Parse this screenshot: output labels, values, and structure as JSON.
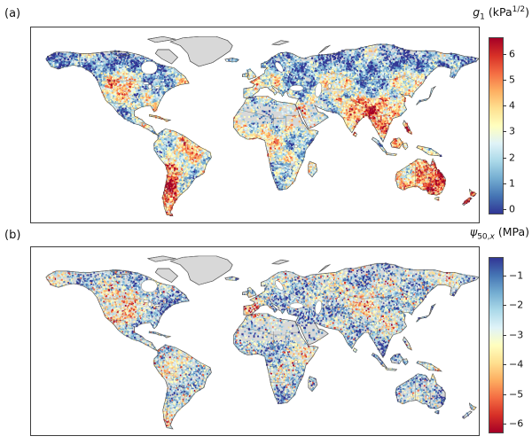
{
  "figure": {
    "background": "#ffffff",
    "panels": [
      {
        "label": "(a)",
        "colorbar": {
          "title": {
            "var": "g",
            "sub": "1",
            "subit": "",
            "mid": " (kPa",
            "sup": "1/2",
            "end": ")"
          },
          "ticks": [
            "6",
            "5",
            "4",
            "3",
            "2",
            "1",
            "0"
          ],
          "gradient_top_to_bottom": [
            "#a50026",
            "#d73027",
            "#f46d43",
            "#fdae61",
            "#fee090",
            "#ffffbf",
            "#e0f3f8",
            "#abd9e9",
            "#74add1",
            "#4575b4",
            "#313695"
          ]
        }
      },
      {
        "label": "(b)",
        "colorbar": {
          "title": {
            "var": "ψ",
            "sub": "50,",
            "subit": "x",
            "mid": " (MPa)",
            "sup": "",
            "end": ""
          },
          "ticks": [
            "−1",
            "−2",
            "−3",
            "−4",
            "−5",
            "−6"
          ],
          "gradient_top_to_bottom": [
            "#313695",
            "#4575b4",
            "#74add1",
            "#abd9e9",
            "#e0f3f8",
            "#ffffbf",
            "#fee090",
            "#fdae61",
            "#f46d43",
            "#d73027",
            "#a50026"
          ]
        }
      }
    ],
    "map": {
      "land_color": "#d8d8d8",
      "coast_color": "#4f4f4f",
      "ocean_color": "#ffffff",
      "border_color": "#6b6b6b",
      "frame_color": "#3c3c3c",
      "palette_blue_to_red": [
        "#313695",
        "#4575b4",
        "#74add1",
        "#abd9e9",
        "#e0f3f8",
        "#ffffbf",
        "#fee090",
        "#fdae61",
        "#f46d43",
        "#d73027",
        "#a50026"
      ]
    }
  }
}
